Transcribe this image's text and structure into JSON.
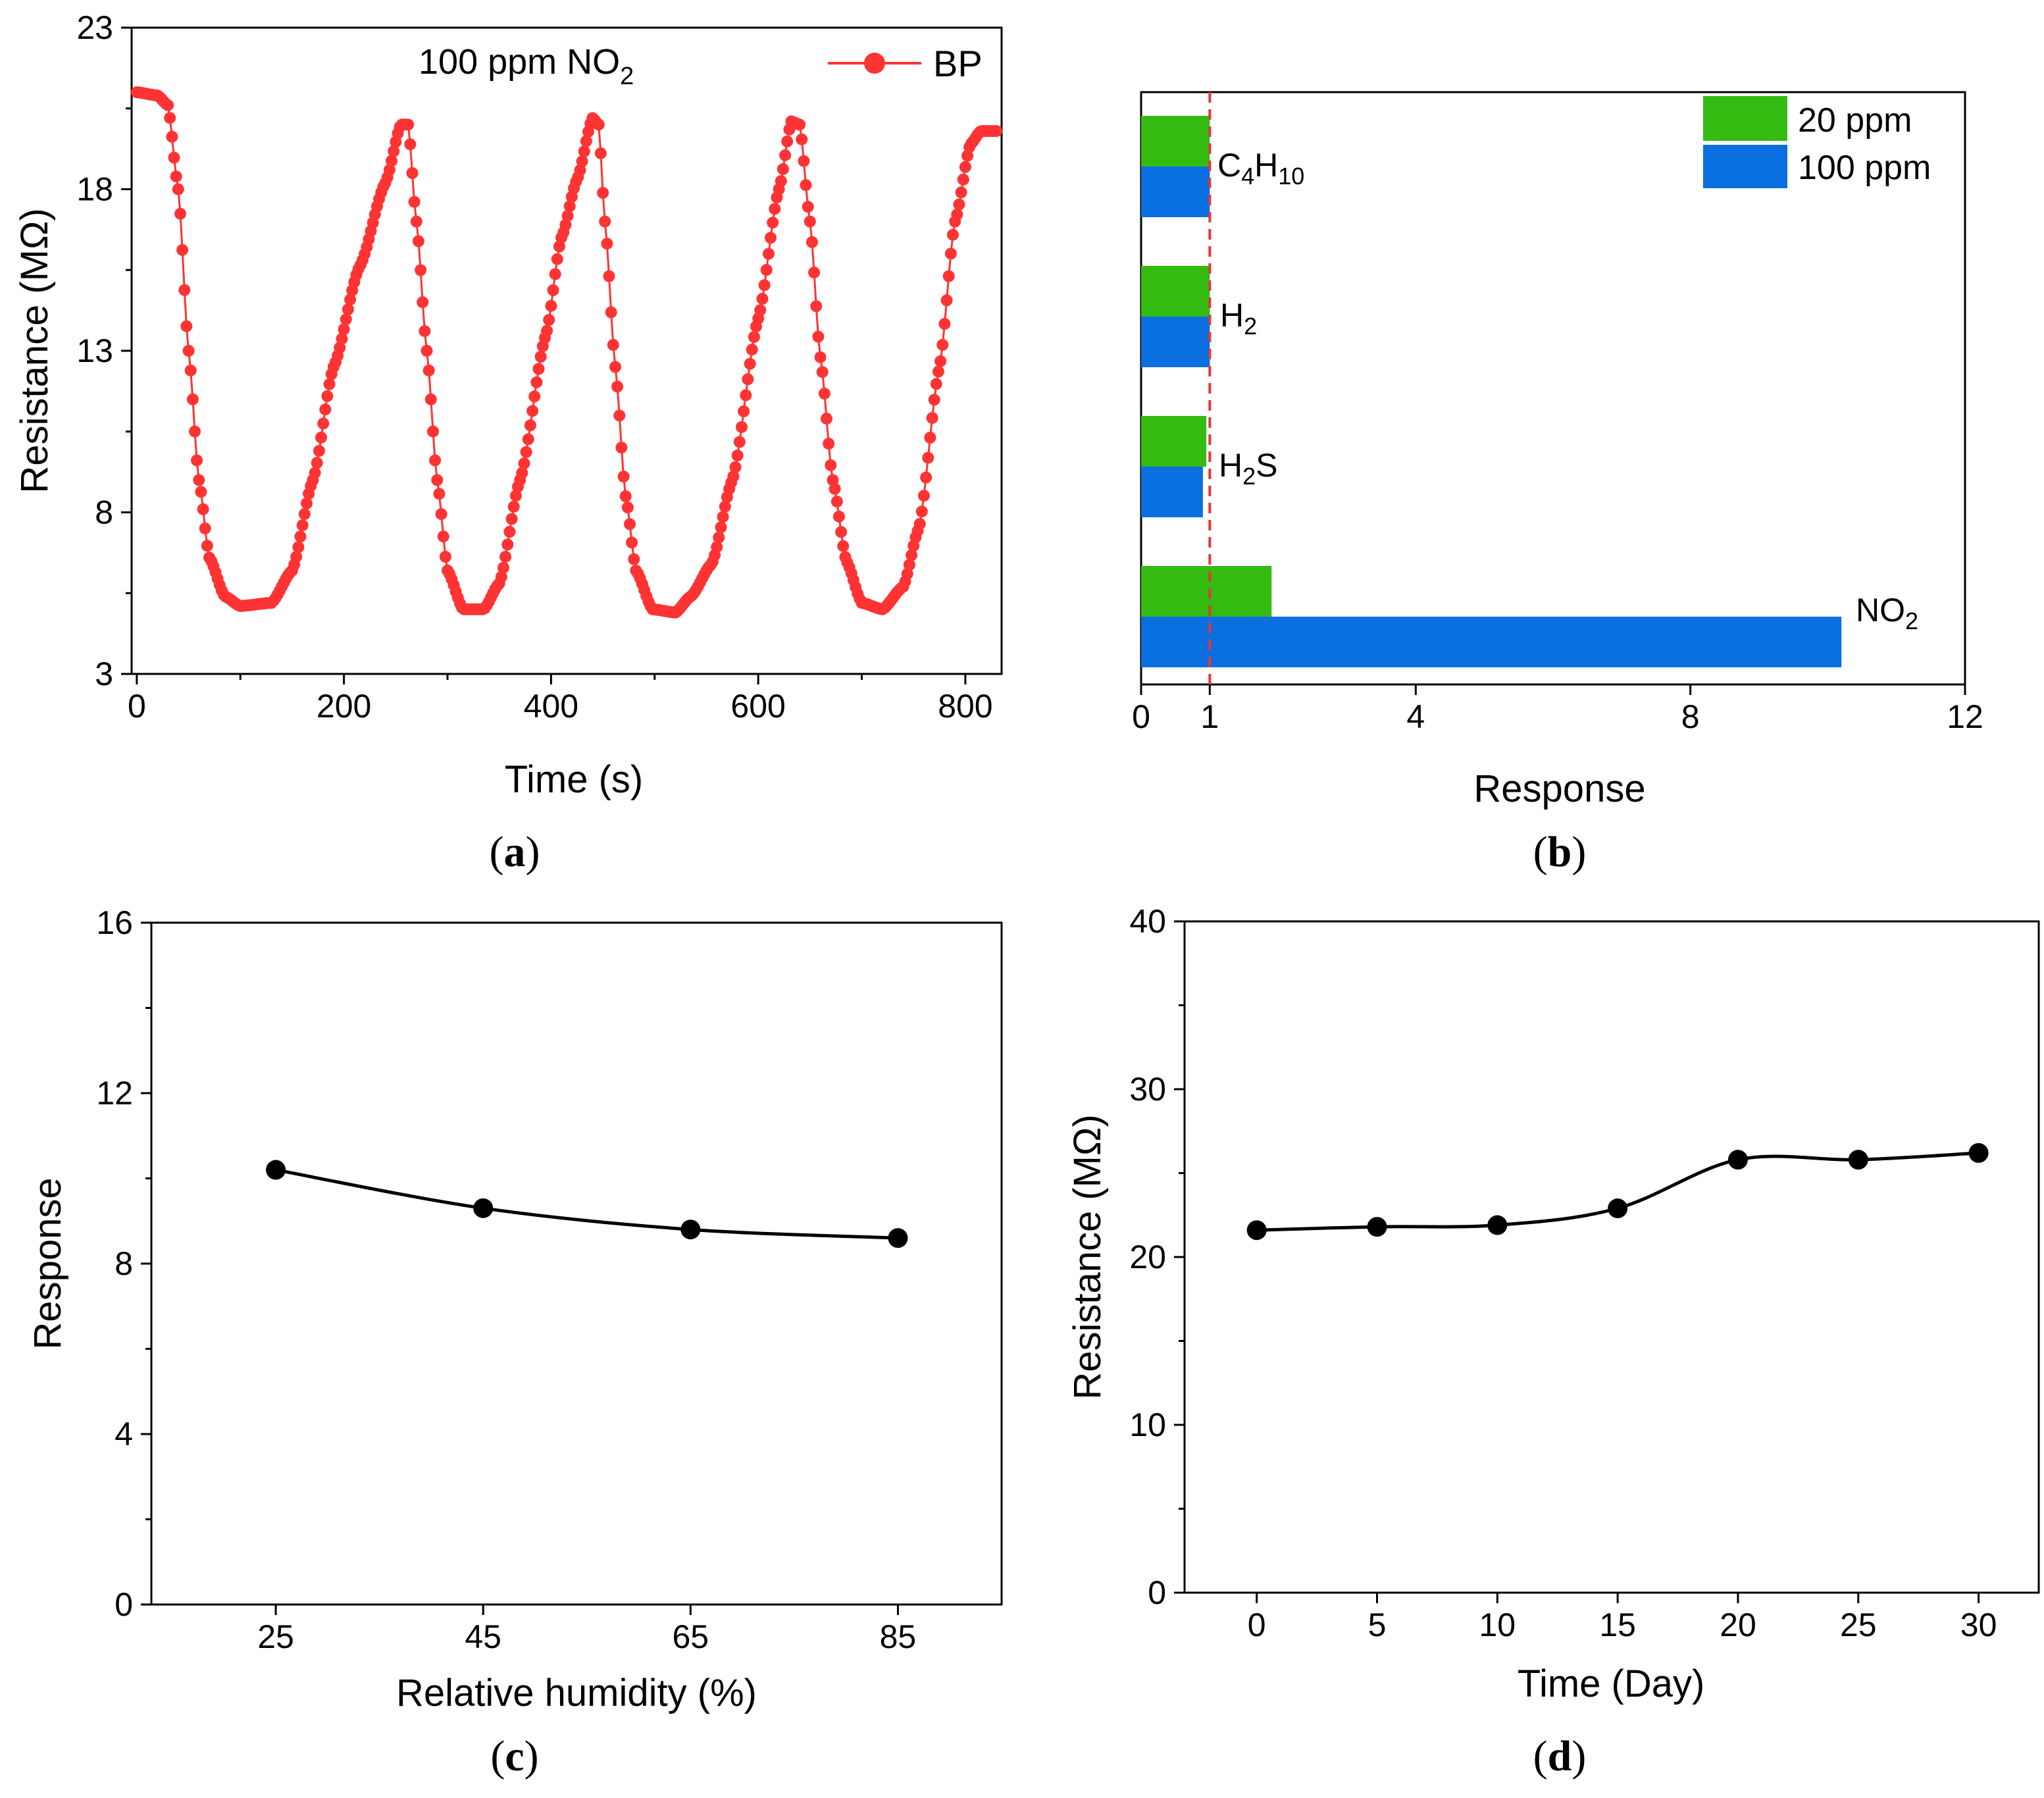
{
  "colors": {
    "bp": "#ff3333",
    "ppm20": "#33bb11",
    "ppm100": "#0a6fe0",
    "ref_line": "#ee3333",
    "marker": "#000000"
  },
  "chart_data": [
    {
      "id": "a",
      "type": "line",
      "panel_label": "a",
      "annotation": {
        "prefix": "100 ppm NO",
        "sub": "2"
      },
      "legend": [
        "BP"
      ],
      "xlabel": "Time (s)",
      "ylabel": "Resistance (MΩ)",
      "xlim": [
        -5,
        835
      ],
      "ylim": [
        3,
        23
      ],
      "xticks": [
        0,
        200,
        400,
        600,
        800
      ],
      "yticks": [
        3,
        8,
        13,
        18,
        23
      ],
      "series": [
        {
          "name": "BP",
          "keypoints": [
            [
              0,
              21.0
            ],
            [
              20,
              20.9
            ],
            [
              30,
              20.6
            ],
            [
              40,
              18.0
            ],
            [
              50,
              13.0
            ],
            [
              60,
              9.0
            ],
            [
              70,
              6.6
            ],
            [
              85,
              5.4
            ],
            [
              100,
              5.1
            ],
            [
              130,
              5.2
            ],
            [
              150,
              6.2
            ],
            [
              170,
              9.0
            ],
            [
              190,
              12.5
            ],
            [
              215,
              15.6
            ],
            [
              240,
              18.2
            ],
            [
              255,
              20.0
            ],
            [
              262,
              20.0
            ],
            [
              270,
              17.0
            ],
            [
              280,
              13.0
            ],
            [
              290,
              9.0
            ],
            [
              300,
              6.2
            ],
            [
              315,
              5.0
            ],
            [
              335,
              5.0
            ],
            [
              350,
              5.8
            ],
            [
              370,
              9.0
            ],
            [
              395,
              13.5
            ],
            [
              410,
              16.5
            ],
            [
              425,
              18.3
            ],
            [
              440,
              20.2
            ],
            [
              446,
              20.0
            ],
            [
              452,
              17.0
            ],
            [
              462,
              12.5
            ],
            [
              472,
              8.5
            ],
            [
              482,
              6.2
            ],
            [
              498,
              5.0
            ],
            [
              520,
              4.9
            ],
            [
              535,
              5.4
            ],
            [
              555,
              6.4
            ],
            [
              575,
              9.0
            ],
            [
              600,
              14.0
            ],
            [
              620,
              18.0
            ],
            [
              632,
              20.1
            ],
            [
              640,
              20.0
            ],
            [
              650,
              17.0
            ],
            [
              660,
              12.8
            ],
            [
              672,
              9.0
            ],
            [
              685,
              6.5
            ],
            [
              700,
              5.2
            ],
            [
              720,
              5.0
            ],
            [
              740,
              5.7
            ],
            [
              755,
              7.5
            ],
            [
              775,
              12.5
            ],
            [
              790,
              17.0
            ],
            [
              805,
              19.4
            ],
            [
              815,
              19.8
            ],
            [
              830,
              19.8
            ]
          ]
        }
      ]
    },
    {
      "id": "b",
      "type": "bar",
      "orientation": "horizontal",
      "panel_label": "b",
      "xlabel": "Response",
      "xlim": [
        0,
        12
      ],
      "xticks": [
        0,
        1,
        4,
        8,
        12
      ],
      "reference_line_x": 1,
      "categories": [
        {
          "base": "C",
          "s1": "4",
          "mid": "H",
          "s2": "10"
        },
        {
          "base": "H",
          "s1": "2",
          "mid": "",
          "s2": ""
        },
        {
          "base": "H",
          "s1": "2",
          "mid": "S",
          "s2": ""
        },
        {
          "base": "NO",
          "s1": "2",
          "mid": "",
          "s2": ""
        }
      ],
      "series": [
        {
          "name": "20 ppm",
          "values": [
            1.0,
            1.0,
            0.95,
            1.9
          ]
        },
        {
          "name": "100 ppm",
          "values": [
            1.0,
            1.0,
            0.9,
            10.2
          ]
        }
      ]
    },
    {
      "id": "c",
      "type": "line",
      "panel_label": "c",
      "xlabel": "Relative humidity (%)",
      "ylabel": "Response",
      "xlim": [
        13,
        95
      ],
      "ylim": [
        0,
        16
      ],
      "xticks": [
        25,
        45,
        65,
        85
      ],
      "yticks": [
        0,
        4,
        8,
        12,
        16
      ],
      "series": [
        {
          "name": "Response",
          "x": [
            25,
            45,
            65,
            85
          ],
          "y": [
            10.2,
            9.3,
            8.8,
            8.6
          ]
        }
      ]
    },
    {
      "id": "d",
      "type": "line",
      "panel_label": "d",
      "xlabel": "Time (Day)",
      "ylabel": "Resistance (MΩ)",
      "xlim": [
        -3,
        32.5
      ],
      "ylim": [
        0,
        40
      ],
      "xticks": [
        0,
        5,
        10,
        15,
        20,
        25,
        30
      ],
      "yticks": [
        0,
        10,
        20,
        30,
        40
      ],
      "series": [
        {
          "name": "Resistance",
          "x": [
            0,
            5,
            10,
            15,
            20,
            25,
            30
          ],
          "y": [
            21.6,
            21.8,
            21.9,
            22.9,
            25.8,
            25.8,
            26.2
          ]
        }
      ]
    }
  ]
}
